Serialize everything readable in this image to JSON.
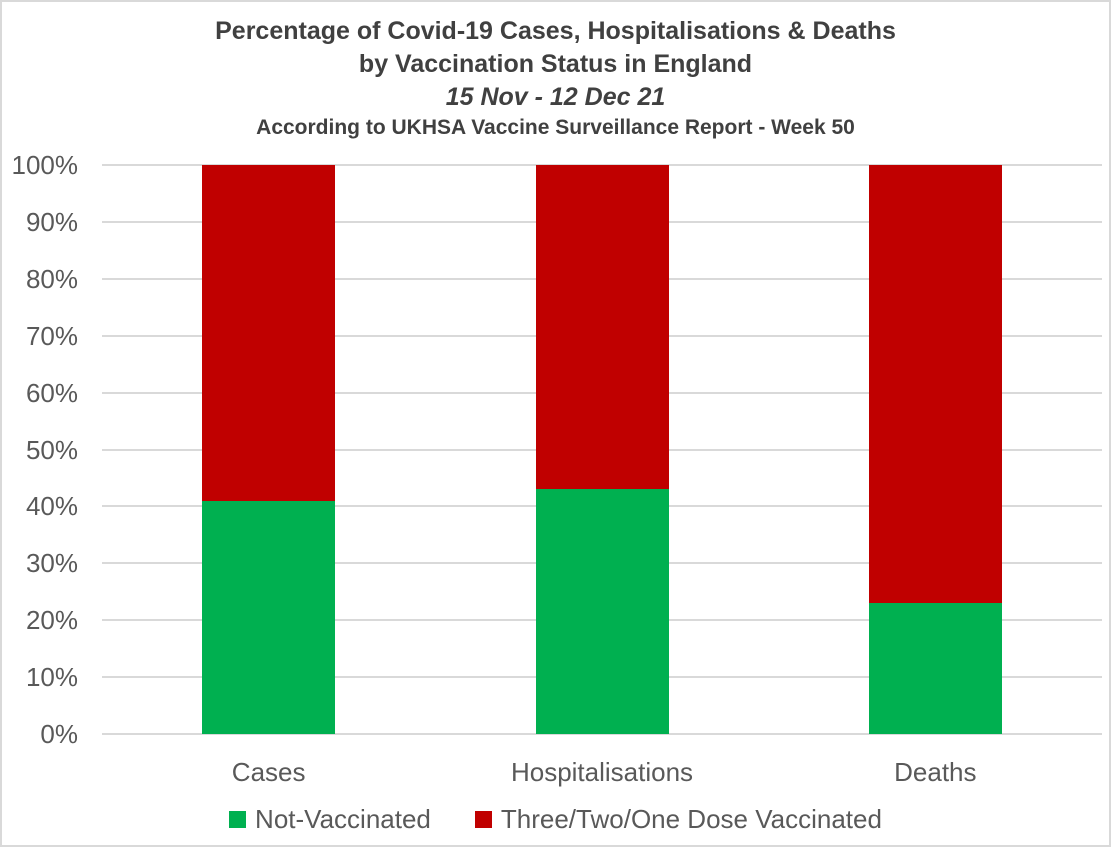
{
  "frame": {
    "background": "#FFFFFF",
    "border_color": "#D9D9D9"
  },
  "title": {
    "line1": "Percentage of Covid-19 Cases, Hospitalisations & Deaths",
    "line2": "by Vaccination Status in England",
    "line3": "15 Nov - 12 Dec 21",
    "line4": "According to UKHSA Vaccine Surveillance Report - Week 50"
  },
  "colors": {
    "title_text": "#404040",
    "axis_text": "#595959",
    "gridline": "#D9D9D9",
    "not_vaccinated": "#00B050",
    "vaccinated": "#C00000"
  },
  "chart_data": {
    "type": "bar",
    "stacked": true,
    "title": "Percentage of Covid-19 Cases, Hospitalisations & Deaths by Vaccination Status in England",
    "subtitle": "15 Nov - 12 Dec 21",
    "note": "According to UKHSA Vaccine Surveillance Report - Week 50",
    "categories": [
      "Cases",
      "Hospitalisations",
      "Deaths"
    ],
    "series": [
      {
        "name": "Not-Vaccinated",
        "color": "#00B050",
        "values": [
          41,
          43,
          23
        ]
      },
      {
        "name": "Three/Two/One Dose Vaccinated",
        "color": "#C00000",
        "values": [
          59,
          57,
          77
        ]
      }
    ],
    "xlabel": "",
    "ylabel": "",
    "ylim": [
      0,
      100
    ],
    "y_tick_values": [
      0,
      10,
      20,
      30,
      40,
      50,
      60,
      70,
      80,
      90,
      100
    ],
    "y_tick_labels": [
      "0%",
      "10%",
      "20%",
      "30%",
      "40%",
      "50%",
      "60%",
      "70%",
      "80%",
      "90%",
      "100%"
    ],
    "grid": true,
    "legend_position": "bottom"
  }
}
